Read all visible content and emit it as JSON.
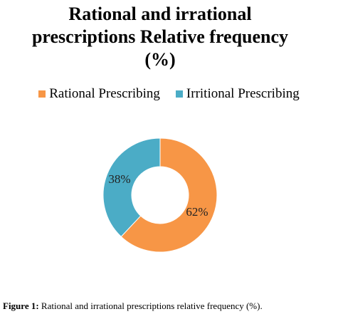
{
  "chart_data": {
    "type": "pie",
    "variant": "donut",
    "title_lines": [
      "Rational and irrational",
      "prescriptions Relative frequency",
      "(%)"
    ],
    "categories": [
      "Rational Prescribing",
      "Irritional Prescribing"
    ],
    "values": [
      62,
      38
    ],
    "data_labels": [
      "62%",
      "38%"
    ],
    "colors": [
      "#F79646",
      "#4BACC6"
    ],
    "legend_position": "top"
  },
  "caption": {
    "prefix": "Figure 1:",
    "text": " Rational and irrational prescriptions relative frequency (%)."
  }
}
